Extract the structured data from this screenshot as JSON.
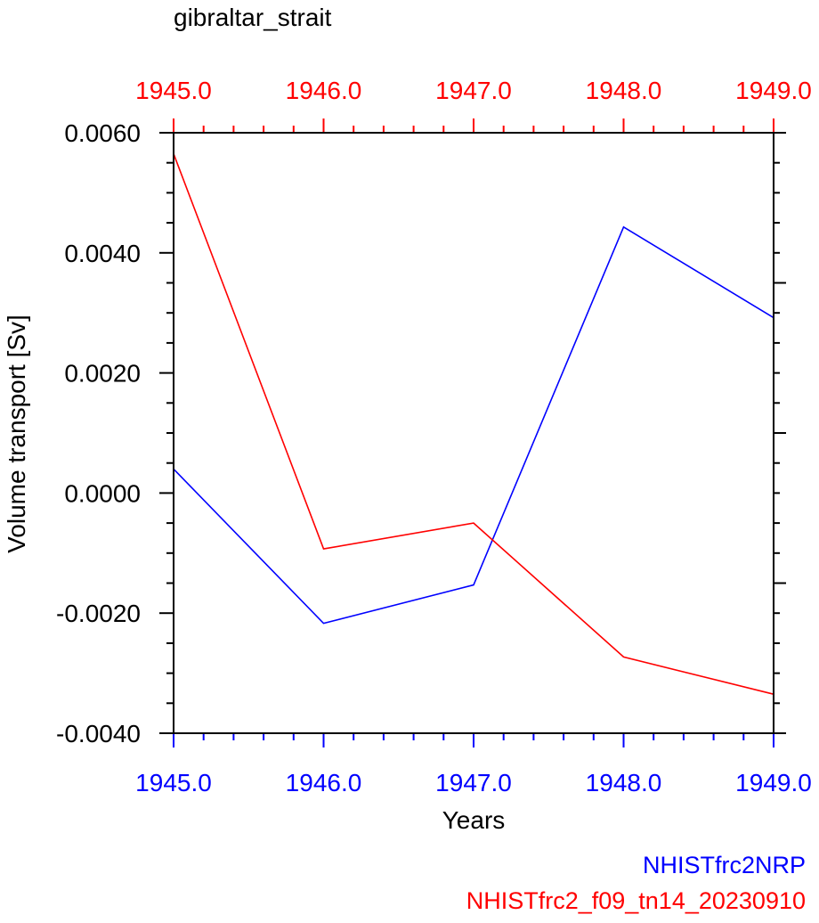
{
  "chart_data": {
    "type": "line",
    "title": "gibraltar_strait",
    "xlabel": "Years",
    "ylabel": "Volume transport [Sv]",
    "xlim": [
      1945.0,
      1949.0
    ],
    "ylim": [
      -0.004,
      0.006
    ],
    "x_ticks": [
      1945.0,
      1946.0,
      1947.0,
      1948.0,
      1949.0
    ],
    "x_tick_labels": [
      "1945.0",
      "1946.0",
      "1947.0",
      "1948.0",
      "1949.0"
    ],
    "y_ticks": [
      -0.004,
      -0.002,
      0.0,
      0.002,
      0.004,
      0.006
    ],
    "y_tick_labels": [
      "-0.0040",
      "-0.0020",
      "0.0000",
      "0.0020",
      "0.0040",
      "0.0060"
    ],
    "series": [
      {
        "name": "NHISTfrc2NRP",
        "color": "#0000ff",
        "x": [
          1945.0,
          1946.0,
          1947.0,
          1948.0,
          1949.0
        ],
        "values": [
          0.0004,
          -0.00217,
          -0.00153,
          0.00443,
          0.00292
        ]
      },
      {
        "name": "NHISTfrc2_f09_tn14_20230910",
        "color": "#ff0000",
        "x": [
          1945.0,
          1946.0,
          1947.0,
          1948.0,
          1949.0
        ],
        "values": [
          0.00565,
          -0.00093,
          -0.0005,
          -0.00273,
          -0.00335
        ]
      }
    ],
    "legend_placement": "bottom-right",
    "grid": false,
    "bottom_axis_color": "#0000ff",
    "top_axis_color": "#ff0000"
  }
}
